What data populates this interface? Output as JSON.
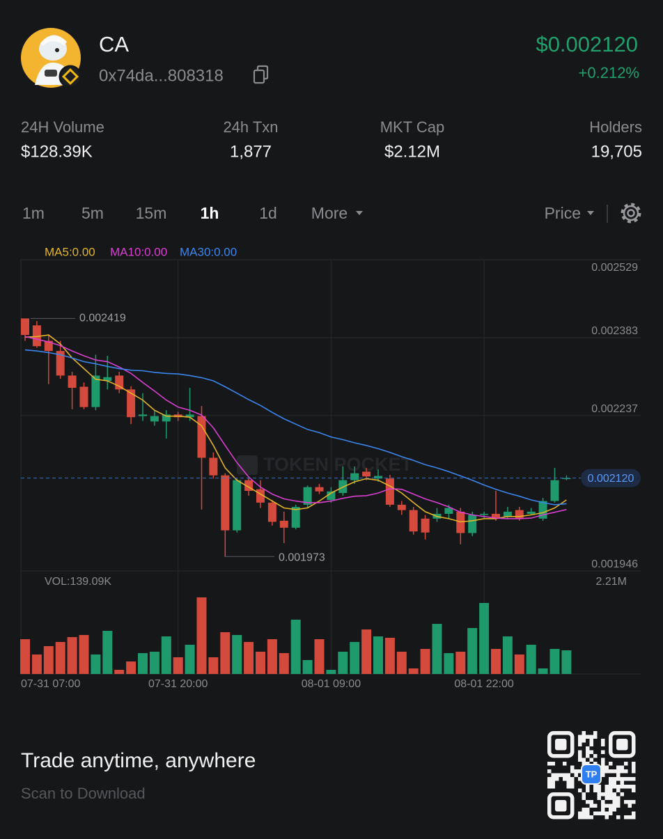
{
  "header": {
    "name": "CA",
    "address": "0x74da...808318",
    "price": "$0.002120",
    "change": "+0.212%"
  },
  "stats": [
    {
      "label": "24H Volume",
      "value": "$128.39K"
    },
    {
      "label": "24h Txn",
      "value": "1,877"
    },
    {
      "label": "MKT Cap",
      "value": "$2.12M"
    },
    {
      "label": "Holders",
      "value": "19,705"
    }
  ],
  "toolbar": {
    "intervals": [
      "1m",
      "5m",
      "15m",
      "1h",
      "1d",
      "More"
    ],
    "active": 3,
    "mode": "Price"
  },
  "chart_data": {
    "type": "candlestick",
    "watermark": "TOKEN POCKET",
    "categories": [
      "07-31 07:00",
      null,
      null,
      null,
      null,
      null,
      null,
      null,
      null,
      null,
      null,
      null,
      null,
      "07-31 20:00",
      null,
      null,
      null,
      null,
      null,
      null,
      null,
      null,
      null,
      null,
      null,
      null,
      "08-01 09:00",
      null,
      null,
      null,
      null,
      null,
      null,
      null,
      null,
      null,
      null,
      null,
      null,
      "08-01 22:00",
      null,
      null,
      null,
      null,
      null,
      null,
      null
    ],
    "candles": [
      [
        0.002419,
        0.002419,
        0.002377,
        0.002388
      ],
      [
        0.002406,
        0.002414,
        0.002364,
        0.002367
      ],
      [
        0.002377,
        0.002388,
        0.002296,
        0.002358
      ],
      [
        0.002358,
        0.002377,
        0.002306,
        0.002312
      ],
      [
        0.002312,
        0.002319,
        0.002249,
        0.002289
      ],
      [
        0.002291,
        0.002299,
        0.002249,
        0.002253
      ],
      [
        0.002253,
        0.002351,
        0.002247,
        0.002312
      ],
      [
        0.002302,
        0.002349,
        0.002286,
        0.002309
      ],
      [
        0.002312,
        0.002319,
        0.002279,
        0.002286
      ],
      [
        0.002286,
        0.002292,
        0.002221,
        0.002234
      ],
      [
        0.002236,
        0.002279,
        0.002227,
        0.002239
      ],
      [
        0.002226,
        0.002247,
        0.002218,
        0.002236
      ],
      [
        0.002226,
        0.002247,
        0.002194,
        0.002239
      ],
      [
        0.002239,
        0.002244,
        0.002227,
        0.002234
      ],
      [
        0.002234,
        0.002289,
        0.002227,
        0.002239
      ],
      [
        0.002236,
        0.002255,
        0.002061,
        0.002158
      ],
      [
        0.002158,
        0.002168,
        0.002119,
        0.002125
      ],
      [
        0.002125,
        0.002129,
        0.001973,
        0.002022
      ],
      [
        0.002022,
        0.002119,
        0.002018,
        0.002116
      ],
      [
        0.002116,
        0.002121,
        0.002087,
        0.002096
      ],
      [
        0.002099,
        0.002116,
        0.002064,
        0.002074
      ],
      [
        0.002074,
        0.002079,
        0.002031,
        0.002038
      ],
      [
        0.00204,
        0.002057,
        0.001998,
        0.002027
      ],
      [
        0.002027,
        0.00207,
        0.002024,
        0.002066
      ],
      [
        0.00207,
        0.002106,
        0.002064,
        0.002103
      ],
      [
        0.002103,
        0.002109,
        0.00209,
        0.002095
      ],
      [
        0.002079,
        0.002103,
        0.002074,
        0.002095
      ],
      [
        0.002092,
        0.002142,
        0.002087,
        0.002116
      ],
      [
        0.002116,
        0.002142,
        0.002109,
        0.002129
      ],
      [
        0.002132,
        0.002139,
        0.002116,
        0.002123
      ],
      [
        0.002119,
        0.002136,
        0.002113,
        0.002124
      ],
      [
        0.002119,
        0.002126,
        0.002066,
        0.00207
      ],
      [
        0.00207,
        0.002077,
        0.002051,
        0.00206
      ],
      [
        0.00206,
        0.002066,
        0.002014,
        0.00202
      ],
      [
        0.002044,
        0.002051,
        0.002005,
        0.002018
      ],
      [
        0.002044,
        0.002064,
        0.002038,
        0.002053
      ],
      [
        0.002053,
        0.00207,
        0.002044,
        0.002064
      ],
      [
        0.002057,
        0.002064,
        0.001996,
        0.002017
      ],
      [
        0.002017,
        0.002057,
        0.002011,
        0.002051
      ],
      [
        0.002051,
        0.002057,
        0.002044,
        0.002053
      ],
      [
        0.002053,
        0.002096,
        0.00204,
        0.002044
      ],
      [
        0.002048,
        0.002066,
        0.002043,
        0.002057
      ],
      [
        0.00206,
        0.002066,
        0.00204,
        0.002044
      ],
      [
        0.002053,
        0.002064,
        0.002051,
        0.002057
      ],
      [
        0.002044,
        0.002083,
        0.00204,
        0.002077
      ],
      [
        0.002077,
        0.002139,
        0.002074,
        0.002116
      ],
      [
        0.002119,
        0.002125,
        0.002116,
        0.00212
      ]
    ],
    "up_color": "#1f9a6c",
    "down_color": "#d44a3c",
    "series": [
      {
        "name": "MA5:0.00",
        "color": "#e5b425",
        "values": [
          0.002384,
          0.002385,
          0.002388,
          0.002371,
          0.002345,
          0.002325,
          0.002305,
          0.002302,
          0.002292,
          0.002279,
          0.002266,
          0.002247,
          0.002236,
          0.002236,
          0.002234,
          0.002218,
          0.002181,
          0.002139,
          0.002116,
          0.002103,
          0.00209,
          0.002077,
          0.002064,
          0.002061,
          0.002064,
          0.002077,
          0.002092,
          0.002103,
          0.002113,
          0.002119,
          0.002116,
          0.002105,
          0.002092,
          0.002074,
          0.002057,
          0.002048,
          0.002044,
          0.002038,
          0.00204,
          0.002044,
          0.002044,
          0.002048,
          0.002048,
          0.002051,
          0.002055,
          0.002064,
          0.002079
        ]
      },
      {
        "name": "MA10:0.00",
        "color": "#d93fd0",
        "values": [
          0.002385,
          0.00238,
          0.002375,
          0.002368,
          0.002358,
          0.002349,
          0.002341,
          0.002338,
          0.002328,
          0.002316,
          0.002299,
          0.002283,
          0.002266,
          0.002253,
          0.002247,
          0.002238,
          0.002214,
          0.002181,
          0.002149,
          0.002122,
          0.002103,
          0.00209,
          0.002081,
          0.002077,
          0.002074,
          0.002074,
          0.002077,
          0.002082,
          0.002086,
          0.002087,
          0.002092,
          0.0021,
          0.002099,
          0.00209,
          0.002081,
          0.002074,
          0.002066,
          0.002056,
          0.002051,
          0.002048,
          0.002045,
          0.002044,
          0.002044,
          0.002045,
          0.002051,
          0.002056,
          0.002061
        ]
      },
      {
        "name": "MA30:0.00",
        "color": "#3b86ee",
        "values": [
          0.00236,
          0.002358,
          0.002355,
          0.002351,
          0.002345,
          0.002338,
          0.002334,
          0.002329,
          0.002325,
          0.002322,
          0.002321,
          0.002318,
          0.002316,
          0.002315,
          0.002312,
          0.002308,
          0.002302,
          0.002291,
          0.002279,
          0.002267,
          0.002256,
          0.002243,
          0.002231,
          0.002221,
          0.002211,
          0.002205,
          0.002197,
          0.002192,
          0.002186,
          0.002181,
          0.002175,
          0.002168,
          0.00216,
          0.002153,
          0.002145,
          0.002139,
          0.002132,
          0.002124,
          0.002116,
          0.002107,
          0.002099,
          0.002092,
          0.002086,
          0.002079,
          0.002074,
          0.00207,
          0.002072
        ]
      }
    ],
    "ylim": [
      0.001946,
      0.002529
    ],
    "yticks": [
      0.002529,
      0.002383,
      0.002237,
      0.001946
    ],
    "high_label": 0.002419,
    "low_label": 0.001973,
    "last_price": {
      "value": 0.00212,
      "label": "0.002120"
    },
    "volume": {
      "label": "VOL:139.09K",
      "ylim": [
        0,
        2210000
      ],
      "yticks": [
        {
          "value": 2210000,
          "label": "2.21M"
        }
      ],
      "values": [
        837000,
        469000,
        670000,
        770000,
        887000,
        938000,
        469000,
        1038000,
        100000,
        301000,
        502000,
        536000,
        904000,
        402000,
        703000,
        1842000,
        402000,
        1005000,
        938000,
        770000,
        536000,
        837000,
        502000,
        1306000,
        335000,
        837000,
        100000,
        536000,
        770000,
        1071000,
        904000,
        871000,
        536000,
        134000,
        603000,
        1205000,
        502000,
        536000,
        1105000,
        1708000,
        603000,
        904000,
        469000,
        703000,
        134000,
        603000,
        569000
      ]
    }
  },
  "footer": {
    "headline": "Trade anytime, anywhere",
    "subline": "Scan to Download",
    "qr_badge": "TP"
  }
}
